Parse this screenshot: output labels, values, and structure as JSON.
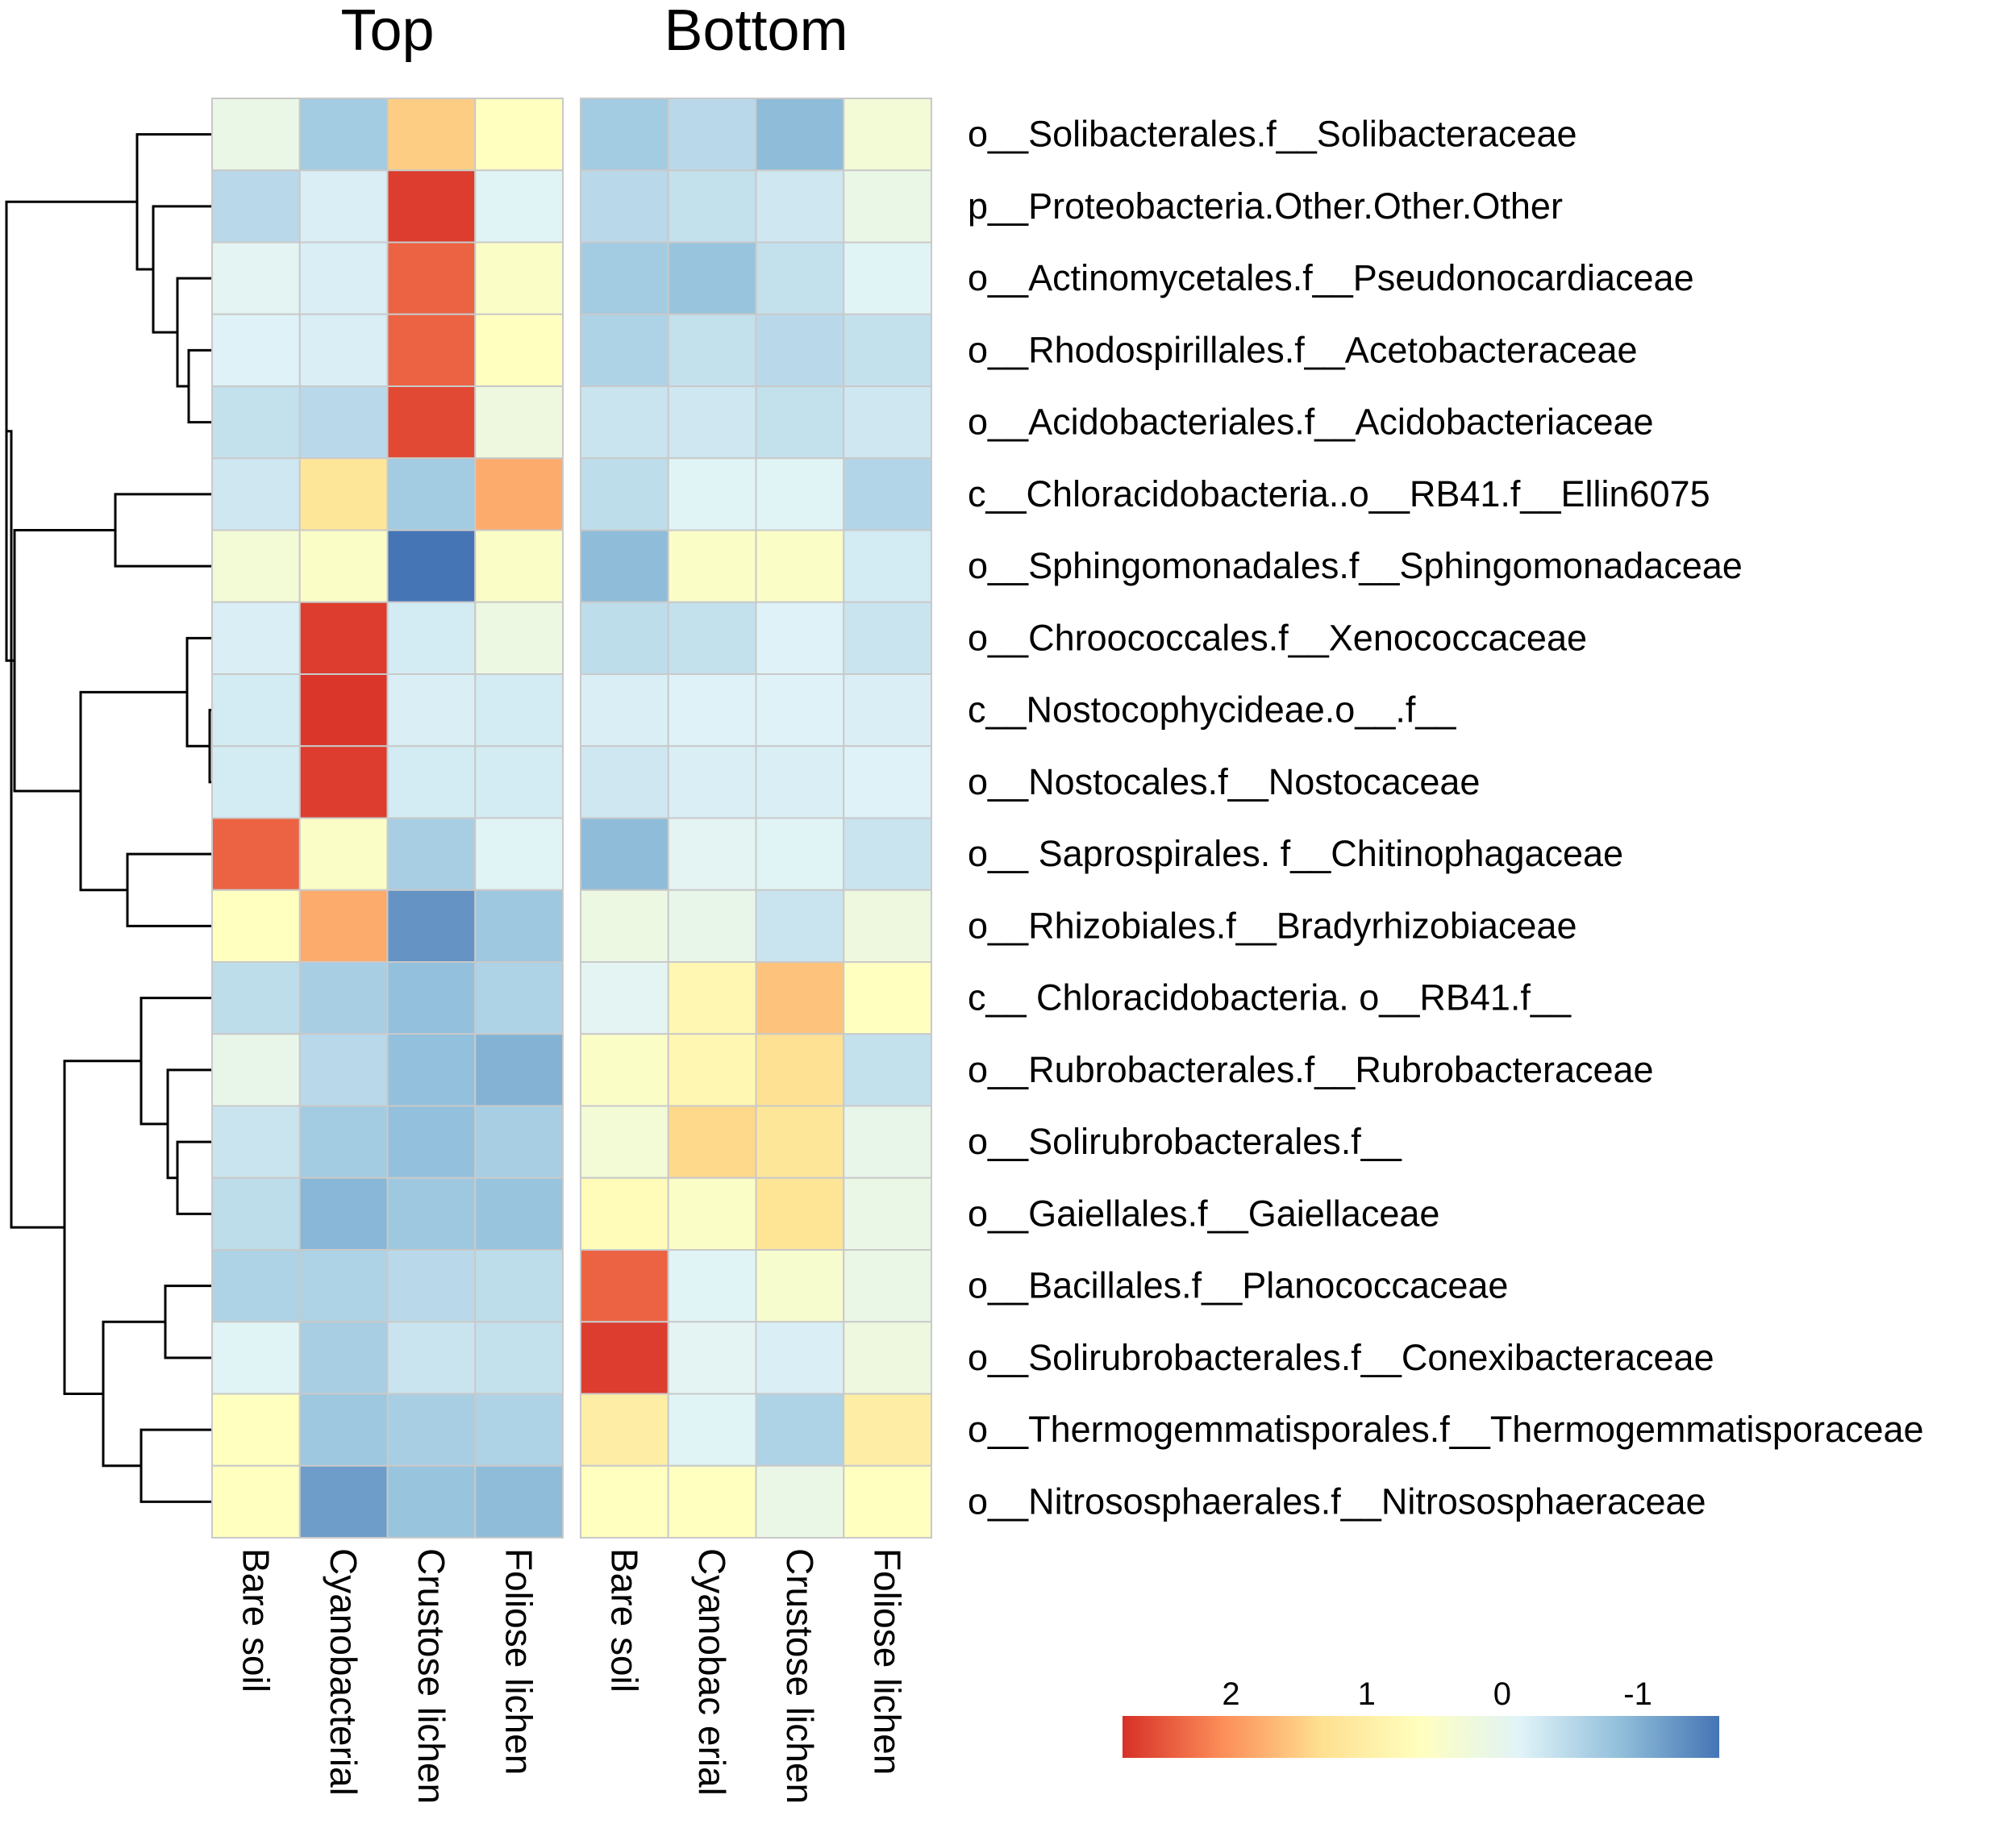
{
  "chart_data": {
    "type": "heatmap",
    "title": "",
    "panels": [
      {
        "name": "Top",
        "columns": [
          "Bare soil",
          "Cyanobacterial",
          "Crustose lichen",
          "Foliose lichen"
        ]
      },
      {
        "name": "Bottom",
        "columns": [
          "Bare soil",
          "Cyanobac erial",
          "Crustose lichen",
          "Foliose lichen"
        ]
      }
    ],
    "rows": [
      "o__Solibacterales.f__Solibacteraceae",
      "p__Proteobacteria.Other.Other.Other",
      "o__Actinomycetales.f__Pseudonocardiaceae",
      "o__Rhodospirillales.f__Acetobacteraceae",
      "o__Acidobacteriales.f__Acidobacteriaceae",
      "c__Chloracidobacteria..o__RB41.f__Ellin6075",
      "o__Sphingomonadales.f__Sphingomonadaceae",
      "o__Chroococcales.f__Xenococcaceae",
      "c__Nostocophycideae.o__.f__",
      "o__Nostocales.f__Nostocaceae",
      "o__ Saprospirales. f__Chitinophagaceae",
      "o__Rhizobiales.f__Bradyrhizobiaceae",
      "c__ Chloracidobacteria. o__RB41.f__",
      "o__Rubrobacterales.f__Rubrobacteraceae",
      "o__Solirubrobacterales.f__",
      "o__Gaiellales.f__Gaiellaceae",
      "o__Bacillales.f__Planococcaceae",
      "o__Solirubrobacterales.f__Conexibacteraceae",
      "o__Thermogemmatisporales.f__Thermogemmatisporaceae",
      "o__Nitrososphaerales.f__Nitrososphaeraceae"
    ],
    "values": [
      [
        0.1,
        -0.7,
        1.5,
        0.6,
        -0.7,
        -0.5,
        -0.9,
        0.3
      ],
      [
        -0.5,
        -0.2,
        2.7,
        -0.1,
        -0.5,
        -0.4,
        -0.3,
        0.1
      ],
      [
        -0.05,
        -0.2,
        2.4,
        0.5,
        -0.7,
        -0.8,
        -0.4,
        -0.1
      ],
      [
        -0.15,
        -0.2,
        2.4,
        0.6,
        -0.6,
        -0.4,
        -0.5,
        -0.4
      ],
      [
        -0.4,
        -0.5,
        2.6,
        0.2,
        -0.35,
        -0.3,
        -0.4,
        -0.3
      ],
      [
        -0.3,
        1.2,
        -0.7,
        1.8,
        -0.45,
        -0.1,
        -0.1,
        -0.55
      ],
      [
        0.3,
        0.5,
        -1.6,
        0.5,
        -0.9,
        0.5,
        0.5,
        -0.25
      ],
      [
        -0.2,
        2.7,
        -0.25,
        0.15,
        -0.45,
        -0.4,
        -0.15,
        -0.35
      ],
      [
        -0.25,
        2.75,
        -0.2,
        -0.25,
        -0.2,
        -0.15,
        -0.15,
        -0.2
      ],
      [
        -0.25,
        2.7,
        -0.25,
        -0.25,
        -0.3,
        -0.2,
        -0.2,
        -0.15
      ],
      [
        2.4,
        0.5,
        -0.65,
        -0.1,
        -0.9,
        -0.05,
        -0.1,
        -0.35
      ],
      [
        0.6,
        1.8,
        -1.3,
        -0.75,
        0.15,
        0.05,
        -0.35,
        0.2
      ],
      [
        -0.45,
        -0.65,
        -0.85,
        -0.6,
        -0.05,
        0.8,
        1.6,
        0.6
      ],
      [
        0.05,
        -0.5,
        -0.85,
        -1.0,
        0.5,
        0.8,
        1.3,
        -0.4
      ],
      [
        -0.35,
        -0.7,
        -0.85,
        -0.65,
        0.3,
        1.4,
        1.2,
        0.05
      ],
      [
        -0.45,
        -0.95,
        -0.75,
        -0.8,
        0.7,
        0.5,
        1.25,
        0.1
      ],
      [
        -0.6,
        -0.6,
        -0.5,
        -0.45,
        2.4,
        -0.1,
        0.4,
        0.1
      ],
      [
        -0.1,
        -0.65,
        -0.35,
        -0.4,
        2.7,
        -0.05,
        -0.2,
        0.2
      ],
      [
        0.6,
        -0.75,
        -0.65,
        -0.6,
        1.0,
        -0.1,
        -0.6,
        1.0
      ],
      [
        0.6,
        -1.2,
        -0.8,
        -0.9,
        0.6,
        0.6,
        0.1,
        0.6
      ]
    ],
    "color_scale": {
      "min": -1.6,
      "max": 2.8,
      "colors": [
        "#4575b4",
        "#91bfdb",
        "#e0f3f8",
        "#ffffbf",
        "#fee090",
        "#fc8d59",
        "#d73027"
      ],
      "ticks": [
        "2",
        "1",
        "0",
        "-1"
      ],
      "tick_values": [
        2,
        1,
        0,
        -1
      ]
    },
    "legend_position": "bottom-right",
    "grid": false,
    "row_dendrogram": true
  }
}
